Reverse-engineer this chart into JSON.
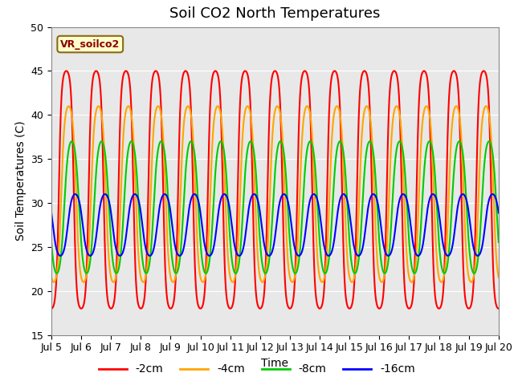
{
  "title": "Soil CO2 North Temperatures",
  "ylabel": "Soil Temperatures (C)",
  "xlabel": "Time",
  "annotation": "VR_soilco2",
  "ylim": [
    15,
    50
  ],
  "xlim": [
    5.0,
    20.0
  ],
  "xtick_labels": [
    "Jul 5",
    "Jul 6",
    "Jul 7",
    "Jul 8",
    "Jul 9",
    "Jul 10",
    "Jul 11",
    "Jul 12",
    "Jul 13",
    "Jul 14",
    "Jul 15",
    "Jul 16",
    "Jul 17",
    "Jul 18",
    "Jul 19",
    "Jul 20"
  ],
  "xtick_positions": [
    5,
    6,
    7,
    8,
    9,
    10,
    11,
    12,
    13,
    14,
    15,
    16,
    17,
    18,
    19,
    20
  ],
  "series": [
    {
      "label": "-2cm",
      "color": "#FF0000",
      "amp": 13.5,
      "base": 31.5,
      "phase": 0.0,
      "shape": 1.8
    },
    {
      "label": "-4cm",
      "color": "#FFA500",
      "amp": 10.0,
      "base": 31.0,
      "phase": 0.08,
      "shape": 1.3
    },
    {
      "label": "-8cm",
      "color": "#00CC00",
      "amp": 7.5,
      "base": 29.5,
      "phase": 0.18,
      "shape": 1.0
    },
    {
      "label": "-16cm",
      "color": "#0000FF",
      "amp": 3.5,
      "base": 27.5,
      "phase": 0.3,
      "shape": 1.0
    }
  ],
  "bg_color": "#E8E8E8",
  "grid_color": "#FFFFFF",
  "title_fontsize": 13,
  "axis_fontsize": 10,
  "tick_fontsize": 9,
  "legend_fontsize": 10,
  "linewidth": 1.5
}
